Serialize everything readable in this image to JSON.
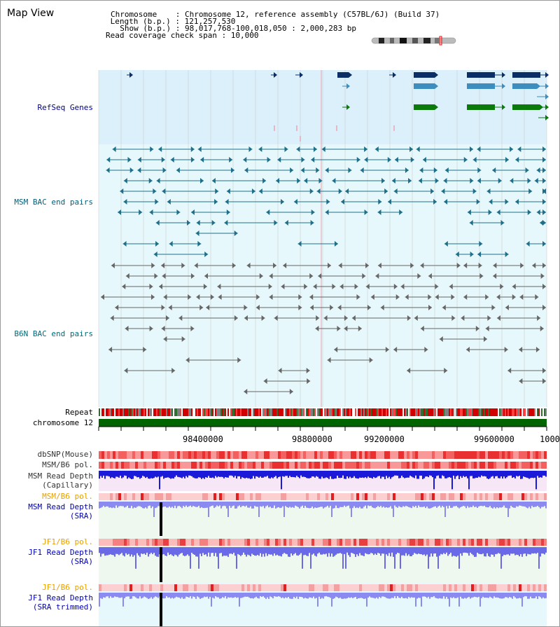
{
  "header": {
    "title": "Map View",
    "info_lines": [
      "Chromosome    : Chromosome 12, reference assembly (C57BL/6J) (Build 37)",
      " Length (b.p.) : 121,257,530",
      "  Show (b.p.) : 98,017,768-100,018,050 : 2,000,283 bp",
      "Read coverage check span : 10,000"
    ]
  },
  "tracks": {
    "refseq": "RefSeq Genes",
    "msm_bac": "MSM BAC end pairs",
    "b6n_bac": "B6N BAC end pairs",
    "repeat": "Repeat",
    "chromosome": "chromosome 12",
    "dbsnp": "dbSNP(Mouse)",
    "msm_b6_pol": "MSM/B6 pol.",
    "msm_depth_cap_1": "MSM Read Depth",
    "msm_depth_cap_2": "(Capillary)",
    "msm_b6_pol_2": "MSM/B6 pol.",
    "msm_depth_sra_1": "MSM Read Depth",
    "msm_depth_sra_2": "(SRA)",
    "jf1_pol_1": "JF1/B6 pol.",
    "jf1_depth_sra_1": "JF1 Read Depth",
    "jf1_depth_sra_2": "(SRA)",
    "jf1_pol_2": "JF1/B6 pol.",
    "jf1_depth_trim_1": "JF1 Read Depth",
    "jf1_depth_trim_2": "(SRA trimmed)"
  },
  "axis": {
    "ticks": [
      "98400000",
      "98800000",
      "99200000",
      "99600000",
      "1000"
    ]
  },
  "colors": {
    "refseq_bg": "#dbf0fa",
    "msm_bg": "#e6f8fb",
    "b6n_bg": "#e6f8fb",
    "refseq_label": "#00008b",
    "msm_label": "#005f7a",
    "b6n_label": "#006b7a",
    "pol_orange": "#e8a000",
    "sra_label": "#0000b0",
    "chromosome_green": "#006400",
    "gene_navy": "#0b2e66",
    "gene_blue": "#3d8dbf",
    "gene_green": "#0a7a0a",
    "msm_pair": "#1f6f8a",
    "b6n_pair": "#666666"
  }
}
